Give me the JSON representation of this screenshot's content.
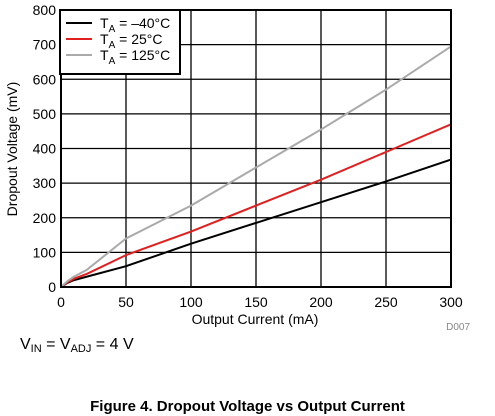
{
  "chart_data": {
    "type": "line",
    "xlabel": "Output Current (mA)",
    "ylabel": "Dropout Voltage (mV)",
    "xlim": [
      0,
      300
    ],
    "ylim": [
      0,
      800
    ],
    "x_ticks": [
      "0",
      "50",
      "100",
      "150",
      "200",
      "250",
      "300"
    ],
    "y_ticks": [
      "0",
      "100",
      "200",
      "300",
      "400",
      "500",
      "600",
      "700",
      "800"
    ],
    "grid": true,
    "legend_position": "top-left",
    "series": [
      {
        "legend_main": "T",
        "legend_sub": "A",
        "legend_value": " = –40°C",
        "color": "#000000",
        "x": [
          0,
          5,
          10,
          20,
          50,
          100,
          150,
          200,
          250,
          300
        ],
        "y": [
          0,
          12,
          20,
          30,
          60,
          125,
          185,
          245,
          305,
          368
        ]
      },
      {
        "legend_main": "T",
        "legend_sub": "A",
        "legend_value": " = 25°C",
        "color": "#e02020",
        "x": [
          0,
          5,
          10,
          20,
          50,
          100,
          150,
          200,
          250,
          300
        ],
        "y": [
          0,
          14,
          24,
          38,
          92,
          160,
          235,
          310,
          390,
          470
        ]
      },
      {
        "legend_main": "T",
        "legend_sub": "A",
        "legend_value": " = 125°C",
        "color": "#aaaaaa",
        "x": [
          0,
          5,
          10,
          20,
          50,
          100,
          150,
          200,
          250,
          300
        ],
        "y": [
          0,
          17,
          30,
          50,
          140,
          235,
          345,
          455,
          570,
          695
        ]
      }
    ],
    "figure_id": "D007"
  },
  "note": {
    "v1": "V",
    "v1_sub": "IN",
    "eq": " = ",
    "v2": "V",
    "v2_sub": "ADJ",
    "value": " = 4 V"
  },
  "caption": "Figure 4. Dropout Voltage vs Output Current"
}
